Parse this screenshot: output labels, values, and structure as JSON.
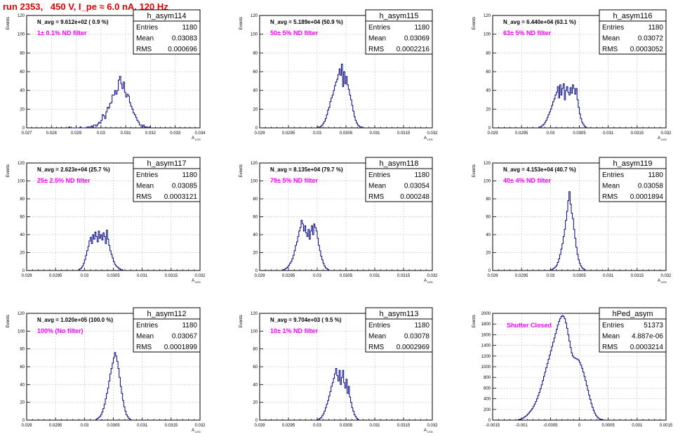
{
  "page_title": "run 2353,   450 V, I_pe ≈ 6.0 nA, 120 Hz",
  "chart_data": [
    {
      "type": "histogram",
      "name": "h_asym114",
      "stats": {
        "Entries": "1180",
        "Mean": "0.03083",
        "RMS": "0.000696"
      },
      "navg": "N_avg = 9.612e+02 ( 0.9 %)",
      "filter": "1± 0.1% ND filter",
      "xlim": [
        0.027,
        0.034
      ],
      "ylim": [
        0,
        120
      ],
      "xticks": [
        0.027,
        0.028,
        0.029,
        0.03,
        0.031,
        0.032,
        0.033,
        0.034
      ],
      "xticklabels": [
        "0.027",
        "0.028",
        "0.029",
        "0.03",
        "0.031",
        "0.032",
        "0.033",
        "0.034"
      ],
      "yticks": [
        0,
        20,
        40,
        60,
        80,
        100,
        120
      ],
      "ylabel": "Events",
      "xlabel": "A",
      "xlabel_sub": "LED",
      "bins": {
        "x0": 0.0287,
        "width": 5e-05,
        "counts": [
          1,
          0,
          0,
          0,
          0,
          0,
          0,
          0,
          0,
          1,
          0,
          0,
          0,
          0,
          0,
          1,
          1,
          0,
          2,
          1,
          3,
          3,
          2,
          4,
          6,
          5,
          8,
          14,
          13,
          10,
          17,
          22,
          21,
          26,
          27,
          35,
          35,
          40,
          36,
          40,
          51,
          55,
          47,
          42,
          49,
          38,
          33,
          36,
          34,
          27,
          23,
          20,
          16,
          14,
          11,
          8,
          6,
          3,
          3,
          1,
          3,
          1,
          1,
          1,
          0,
          1
        ]
      }
    },
    {
      "type": "histogram",
      "name": "h_asym115",
      "stats": {
        "Entries": "1180",
        "Mean": "0.03069",
        "RMS": "0.0002216"
      },
      "navg": "N_avg = 5.189e+04 (50.9 %)",
      "filter": "50± 5% ND filter",
      "xlim": [
        0.029,
        0.032
      ],
      "ylim": [
        0,
        120
      ],
      "xticks": [
        0.029,
        0.0295,
        0.03,
        0.0305,
        0.031,
        0.0315,
        0.032
      ],
      "xticklabels": [
        "0.029",
        "0.0295",
        "0.03",
        "0.0305",
        "0.031",
        "0.0315",
        "0.032"
      ],
      "yticks": [
        0,
        20,
        40,
        60,
        80,
        100,
        120
      ],
      "ylabel": "Events",
      "xlabel": "A",
      "xlabel_sub": "LED",
      "bins": {
        "x0": 0.03,
        "width": 2e-05,
        "counts": [
          1,
          1,
          1,
          2,
          3,
          5,
          7,
          10,
          14,
          19,
          22,
          28,
          32,
          35,
          40,
          45,
          49,
          52,
          57,
          63,
          56,
          68,
          44,
          60,
          47,
          55,
          46,
          41,
          35,
          30,
          24,
          18,
          12,
          8,
          5,
          3,
          2,
          1,
          1
        ]
      }
    },
    {
      "type": "histogram",
      "name": "h_asym116",
      "stats": {
        "Entries": "1180",
        "Mean": "0.03072",
        "RMS": "0.0003052"
      },
      "navg": "N_avg = 6.440e+04 (63.1 %)",
      "filter": "63± 5% ND filter",
      "xlim": [
        0.029,
        0.032
      ],
      "ylim": [
        0,
        120
      ],
      "xticks": [
        0.029,
        0.0295,
        0.03,
        0.0305,
        0.031,
        0.0315,
        0.032
      ],
      "xticklabels": [
        "0.029",
        "0.0295",
        "0.03",
        "0.0305",
        "0.031",
        "0.0315",
        "0.032"
      ],
      "yticks": [
        0,
        20,
        40,
        60,
        80,
        100,
        120
      ],
      "ylabel": "Events",
      "xlabel": "A",
      "xlabel_sub": "LED",
      "bins": {
        "x0": 0.0298,
        "width": 2e-05,
        "counts": [
          1,
          1,
          2,
          3,
          4,
          6,
          8,
          11,
          14,
          17,
          20,
          24,
          28,
          31,
          35,
          38,
          44,
          32,
          46,
          35,
          42,
          47,
          30,
          40,
          44,
          38,
          35,
          43,
          37,
          46,
          42,
          36,
          42,
          30,
          22,
          15,
          10,
          6,
          4,
          2,
          1
        ]
      }
    },
    {
      "type": "histogram",
      "name": "h_asym117",
      "stats": {
        "Entries": "1180",
        "Mean": "0.03085",
        "RMS": "0.0003121"
      },
      "navg": "N_avg = 2.623e+04 (25.7 %)",
      "filter": "25± 2.5% ND filter",
      "xlim": [
        0.029,
        0.032
      ],
      "ylim": [
        0,
        120
      ],
      "xticks": [
        0.029,
        0.0295,
        0.03,
        0.0305,
        0.031,
        0.0315,
        0.032
      ],
      "xticklabels": [
        "0.029",
        "0.0295",
        "0.03",
        "0.0305",
        "0.031",
        "0.0315",
        "0.032"
      ],
      "yticks": [
        0,
        20,
        40,
        60,
        80,
        100,
        120
      ],
      "ylabel": "Events",
      "xlabel": "A",
      "xlabel_sub": "LED",
      "bins": {
        "x0": 0.0299,
        "width": 2e-05,
        "counts": [
          1,
          2,
          3,
          5,
          8,
          12,
          17,
          22,
          27,
          33,
          37,
          30,
          40,
          35,
          43,
          38,
          32,
          44,
          36,
          40,
          34,
          42,
          38,
          30,
          45,
          35,
          28,
          22,
          18,
          14,
          10,
          7,
          5,
          4,
          3,
          2,
          1,
          1
        ]
      }
    },
    {
      "type": "histogram",
      "name": "h_asym118",
      "stats": {
        "Entries": "1180",
        "Mean": "0.03054",
        "RMS": "0.000248"
      },
      "navg": "N_avg = 8.135e+04 (79.7 %)",
      "filter": "79± 5% ND filter",
      "xlim": [
        0.029,
        0.032
      ],
      "ylim": [
        0,
        120
      ],
      "xticks": [
        0.029,
        0.0295,
        0.03,
        0.0305,
        0.031,
        0.0315,
        0.032
      ],
      "xticklabels": [
        "0.029",
        "0.0295",
        "0.03",
        "0.0305",
        "0.031",
        "0.0315",
        "0.032"
      ],
      "yticks": [
        0,
        20,
        40,
        60,
        80,
        100,
        120
      ],
      "ylabel": "Events",
      "xlabel": "A",
      "xlabel_sub": "LED",
      "bins": {
        "x0": 0.0294,
        "width": 2e-05,
        "counts": [
          1,
          1,
          2,
          3,
          4,
          6,
          8,
          10,
          13,
          17,
          22,
          28,
          32,
          38,
          44,
          48,
          56,
          52,
          44,
          50,
          42,
          38,
          46,
          35,
          44,
          50,
          40,
          52,
          48,
          44,
          36,
          28,
          22,
          16,
          12,
          8,
          5,
          3,
          2,
          1
        ]
      }
    },
    {
      "type": "histogram",
      "name": "h_asym119",
      "stats": {
        "Entries": "1180",
        "Mean": "0.03058",
        "RMS": "0.0001894"
      },
      "navg": "N_avg = 4.153e+04 (40.7 %)",
      "filter": "40± 4% ND filter",
      "xlim": [
        0.029,
        0.032
      ],
      "ylim": [
        0,
        120
      ],
      "xticks": [
        0.029,
        0.0295,
        0.03,
        0.0305,
        0.031,
        0.0315,
        0.032
      ],
      "xticklabels": [
        "0.029",
        "0.0295",
        "0.03",
        "0.0305",
        "0.031",
        "0.0315",
        "0.032"
      ],
      "yticks": [
        0,
        20,
        40,
        60,
        80,
        100,
        120
      ],
      "ylabel": "Events",
      "xlabel": "A",
      "xlabel_sub": "LED",
      "bins": {
        "x0": 0.03,
        "width": 2e-05,
        "counts": [
          1,
          1,
          2,
          3,
          4,
          6,
          9,
          13,
          18,
          24,
          30,
          38,
          46,
          56,
          66,
          78,
          88,
          74,
          64,
          58,
          46,
          36,
          26,
          18,
          12,
          8,
          5,
          3,
          2,
          1
        ]
      }
    },
    {
      "type": "histogram",
      "name": "h_asym112",
      "stats": {
        "Entries": "1180",
        "Mean": "0.03067",
        "RMS": "0.0001899"
      },
      "navg": "N_avg = 1.020e+05 (100.0 %)",
      "filter": "100% (No filter)",
      "xlim": [
        0.029,
        0.032
      ],
      "ylim": [
        0,
        120
      ],
      "xticks": [
        0.029,
        0.0295,
        0.03,
        0.0305,
        0.031,
        0.0315,
        0.032
      ],
      "xticklabels": [
        "0.029",
        "0.0295",
        "0.03",
        "0.0305",
        "0.031",
        "0.0315",
        "0.032"
      ],
      "yticks": [
        0,
        20,
        40,
        60,
        80,
        100,
        120
      ],
      "ylabel": "Events",
      "xlabel": "A",
      "xlabel_sub": "LED",
      "bins": {
        "x0": 0.0302,
        "width": 2e-05,
        "counts": [
          1,
          2,
          3,
          4,
          6,
          9,
          13,
          18,
          24,
          30,
          36,
          44,
          52,
          58,
          64,
          70,
          76,
          72,
          66,
          58,
          48,
          38,
          30,
          22,
          15,
          10,
          6,
          4,
          2,
          1
        ]
      }
    },
    {
      "type": "histogram",
      "name": "h_asym113",
      "stats": {
        "Entries": "1180",
        "Mean": "0.03078",
        "RMS": "0.0002969"
      },
      "navg": "N_avg = 9.704e+03 ( 9.5 %)",
      "filter": "10± 1% ND filter",
      "xlim": [
        0.029,
        0.032
      ],
      "ylim": [
        0,
        120
      ],
      "xticks": [
        0.029,
        0.0295,
        0.03,
        0.0305,
        0.031,
        0.0315,
        0.032
      ],
      "xticklabels": [
        "0.029",
        "0.0295",
        "0.03",
        "0.0305",
        "0.031",
        "0.0315",
        "0.032"
      ],
      "yticks": [
        0,
        20,
        40,
        60,
        80,
        100,
        120
      ],
      "ylabel": "Events",
      "xlabel": "A",
      "xlabel_sub": "LED",
      "bins": {
        "x0": 0.03,
        "width": 2e-05,
        "counts": [
          1,
          1,
          2,
          3,
          5,
          7,
          10,
          14,
          18,
          22,
          27,
          32,
          38,
          42,
          47,
          52,
          58,
          50,
          44,
          56,
          40,
          48,
          56,
          42,
          36,
          46,
          30,
          38,
          26,
          20,
          14,
          10,
          6,
          4,
          2,
          1
        ]
      }
    },
    {
      "type": "histogram",
      "name": "hPed_asym",
      "stats": {
        "Entries": "51373",
        "Mean": "4.887e-06",
        "RMS": "0.0003214"
      },
      "navg": "",
      "filter": "Shutter Closed",
      "xlim": [
        -0.0015,
        0.0015
      ],
      "ylim": [
        0,
        2000
      ],
      "xticks": [
        -0.0015,
        -0.001,
        -0.0005,
        0,
        0.0005,
        0.001,
        0.0015
      ],
      "xticklabels": [
        "-0.0015",
        "-0.001",
        "-0.0005",
        "0",
        "0.0005",
        "0.001",
        "0.0015"
      ],
      "yticks": [
        0,
        200,
        400,
        600,
        800,
        1000,
        1200,
        1400,
        1600,
        1800,
        2000
      ],
      "ylabel": "Events",
      "xlabel": "",
      "xlabel_sub": "",
      "bins": {
        "x0": -0.00106,
        "width": 2e-05,
        "counts": [
          10,
          15,
          20,
          30,
          40,
          55,
          70,
          90,
          110,
          135,
          160,
          190,
          220,
          260,
          300,
          350,
          400,
          460,
          520,
          590,
          660,
          740,
          820,
          900,
          980,
          1060,
          1140,
          1220,
          1300,
          1380,
          1460,
          1540,
          1620,
          1700,
          1780,
          1850,
          1900,
          1940,
          1960,
          1940,
          1900,
          1820,
          1720,
          1600,
          1480,
          1360,
          1260,
          1200,
          1170,
          1160,
          1150,
          1140,
          1120,
          1080,
          1030,
          970,
          900,
          820,
          740,
          650,
          560,
          470,
          390,
          310,
          240,
          180,
          130,
          90,
          60,
          40,
          25,
          15,
          8,
          4,
          2
        ]
      }
    }
  ],
  "colors": {
    "line": "#000080",
    "title_red": "#e00000",
    "label_magenta": "#ff00ff"
  }
}
